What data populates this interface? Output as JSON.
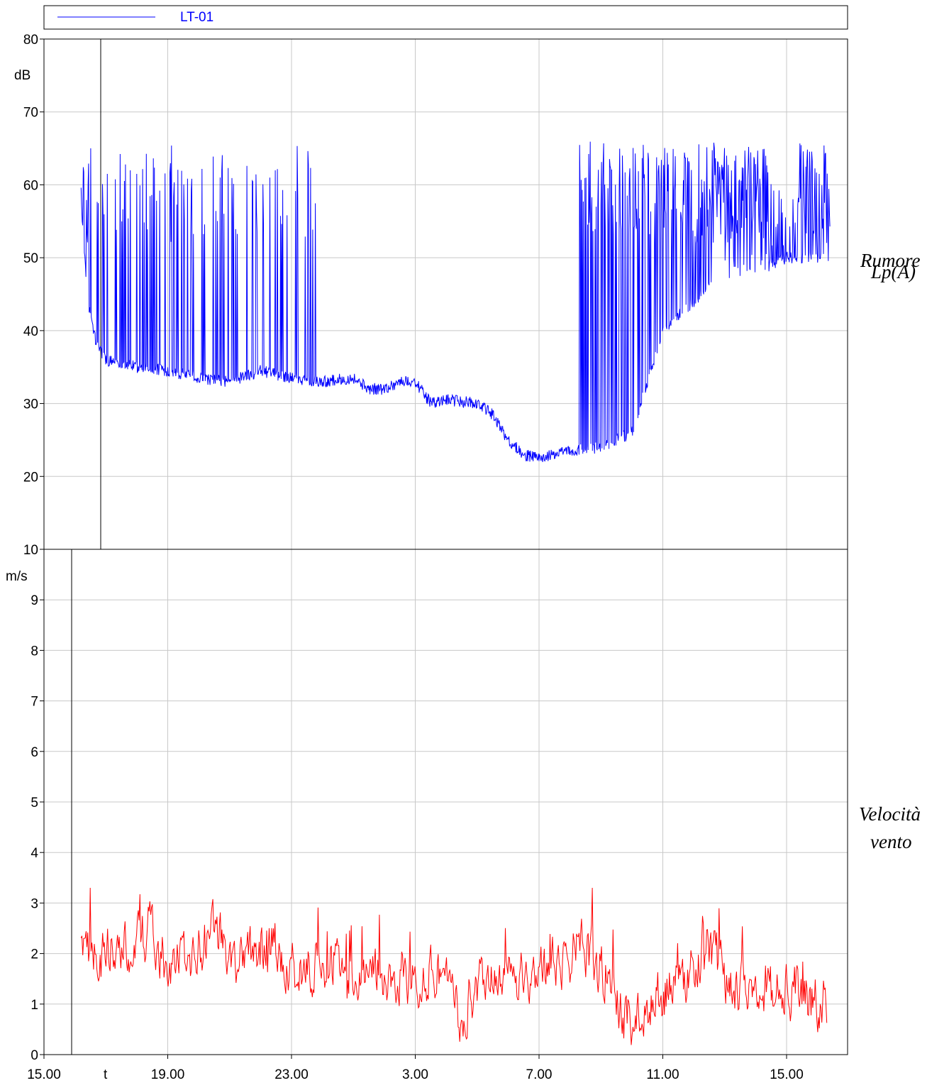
{
  "legend": {
    "label": "LT-01",
    "color": "#0000ff"
  },
  "chart_data": [
    {
      "type": "line",
      "ylabel": "dB",
      "side_label": [
        "Rumore",
        "Lp(A)"
      ],
      "ylim": [
        10,
        80
      ],
      "yticks": [
        10,
        20,
        30,
        40,
        50,
        60,
        70,
        80
      ],
      "x_hours_range": [
        -1.0,
        25.4
      ],
      "x_start_hours": 1.2,
      "x_end_hours": 25.4,
      "grid": true,
      "series": [
        {
          "name": "LT-01",
          "color": "#0000ff",
          "trend": [
            [
              1.2,
              58
            ],
            [
              1.4,
              44
            ],
            [
              1.7,
              38
            ],
            [
              2.0,
              36
            ],
            [
              2.5,
              35.5
            ],
            [
              3.0,
              35
            ],
            [
              4.0,
              34.5
            ],
            [
              5.0,
              33.5
            ],
            [
              6.0,
              33
            ],
            [
              7.0,
              34.5
            ],
            [
              8.0,
              33.5
            ],
            [
              9.0,
              33
            ],
            [
              10.0,
              33.5
            ],
            [
              10.5,
              32
            ],
            [
              11.0,
              32
            ],
            [
              11.5,
              33
            ],
            [
              12.0,
              33
            ],
            [
              12.5,
              30
            ],
            [
              13.0,
              30.5
            ],
            [
              14.0,
              30
            ],
            [
              14.5,
              28.5
            ],
            [
              15.0,
              25
            ],
            [
              15.5,
              23
            ],
            [
              16.0,
              22.5
            ],
            [
              17.0,
              23.5
            ],
            [
              18.0,
              24
            ],
            [
              19.0,
              26
            ],
            [
              19.5,
              33
            ],
            [
              20.0,
              40
            ],
            [
              21.0,
              44
            ],
            [
              22.0,
              48
            ],
            [
              23.0,
              48
            ],
            [
              24.0,
              50
            ],
            [
              25.4,
              50
            ]
          ],
          "peaks": [
            [
              1.25,
              68.5
            ],
            [
              1.45,
              62
            ],
            [
              1.6,
              60
            ],
            [
              1.8,
              65.5
            ],
            [
              2.0,
              64.5
            ],
            [
              2.3,
              64.5
            ],
            [
              2.6,
              62
            ],
            [
              3.0,
              62
            ],
            [
              3.3,
              63
            ],
            [
              3.8,
              62
            ],
            [
              4.3,
              63
            ],
            [
              5.0,
              59
            ],
            [
              5.5,
              55
            ],
            [
              6.2,
              62
            ],
            [
              6.5,
              63.5
            ],
            [
              7.1,
              61
            ],
            [
              7.5,
              56
            ],
            [
              7.7,
              64
            ],
            [
              8.2,
              60
            ],
            [
              8.5,
              58
            ],
            [
              10.0,
              54
            ],
            [
              10.2,
              53
            ],
            [
              13.0,
              33
            ],
            [
              15.1,
              56
            ],
            [
              15.3,
              58
            ],
            [
              15.6,
              62
            ],
            [
              16.0,
              28
            ],
            [
              17.5,
              60
            ],
            [
              17.8,
              62
            ],
            [
              18.7,
              65.5
            ],
            [
              19.5,
              60
            ],
            [
              20.1,
              65.5
            ],
            [
              20.5,
              65
            ],
            [
              21.0,
              66
            ],
            [
              21.4,
              66.5
            ],
            [
              21.8,
              66
            ],
            [
              22.3,
              68
            ],
            [
              22.6,
              67
            ],
            [
              23.0,
              68
            ],
            [
              23.4,
              65
            ],
            [
              23.8,
              64.5
            ],
            [
              24.2,
              65
            ],
            [
              24.6,
              66
            ],
            [
              25.0,
              66
            ],
            [
              25.3,
              65
            ],
            [
              26.0,
              62
            ],
            [
              27.0,
              60
            ],
            [
              28.0,
              55
            ],
            [
              29.0,
              55
            ],
            [
              30.0,
              55
            ],
            [
              31.0,
              52
            ],
            [
              32.0,
              58
            ],
            [
              33.0,
              65
            ],
            [
              34.0,
              67
            ],
            [
              35.0,
              66
            ],
            [
              36.0,
              65
            ],
            [
              37.0,
              65
            ]
          ]
        }
      ]
    },
    {
      "type": "line",
      "ylabel": "m/s",
      "side_label": [
        "Velocità",
        "vento"
      ],
      "ylim": [
        0,
        10
      ],
      "yticks": [
        0,
        1,
        2,
        3,
        4,
        5,
        6,
        7,
        8,
        9,
        10
      ],
      "xlabel": "t",
      "x_tick_labels": [
        "15.00",
        "19.00",
        "23.00",
        "3.00",
        "7.00",
        "11.00",
        "15.00"
      ],
      "x_tick_hours": [
        0,
        4,
        8,
        12,
        16,
        20,
        24
      ],
      "x_start_hours": 1.2,
      "x_end_hours": 25.3,
      "grid": true,
      "series": [
        {
          "name": "",
          "color": "#ff0000",
          "trend": [
            [
              1.2,
              2.2
            ],
            [
              1.5,
              2.0
            ],
            [
              2.0,
              2.0
            ],
            [
              2.5,
              2.1
            ],
            [
              3.0,
              2.3
            ],
            [
              3.5,
              2.5
            ],
            [
              4.0,
              1.6
            ],
            [
              4.5,
              1.8
            ],
            [
              5.0,
              2.2
            ],
            [
              5.5,
              2.6
            ],
            [
              6.0,
              1.8
            ],
            [
              6.5,
              2.0
            ],
            [
              7.0,
              2.2
            ],
            [
              7.5,
              2.1
            ],
            [
              8.0,
              1.8
            ],
            [
              8.5,
              1.6
            ],
            [
              9.0,
              1.8
            ],
            [
              9.5,
              1.8
            ],
            [
              10.0,
              1.7
            ],
            [
              10.5,
              1.6
            ],
            [
              11.0,
              1.4
            ],
            [
              11.5,
              1.5
            ],
            [
              12.0,
              1.6
            ],
            [
              12.5,
              1.7
            ],
            [
              13.0,
              1.6
            ],
            [
              13.5,
              0.6
            ],
            [
              13.8,
              1.2
            ],
            [
              14.5,
              1.4
            ],
            [
              15.0,
              1.5
            ],
            [
              15.5,
              1.5
            ],
            [
              16.0,
              1.6
            ],
            [
              16.5,
              1.8
            ],
            [
              17.0,
              2.0
            ],
            [
              17.5,
              2.1
            ],
            [
              18.0,
              1.7
            ],
            [
              18.5,
              1.0
            ],
            [
              19.0,
              0.6
            ],
            [
              19.5,
              0.9
            ],
            [
              20.0,
              1.2
            ],
            [
              20.5,
              1.4
            ],
            [
              21.0,
              1.8
            ],
            [
              21.5,
              2.1
            ],
            [
              22.0,
              1.5
            ],
            [
              22.5,
              1.4
            ],
            [
              23.0,
              1.6
            ],
            [
              23.5,
              1.3
            ],
            [
              24.0,
              1.3
            ],
            [
              24.5,
              1.2
            ],
            [
              25.0,
              1.0
            ],
            [
              25.3,
              1.0
            ]
          ],
          "peaks": [
            [
              2.0,
              3.0
            ],
            [
              3.8,
              3.1
            ],
            [
              5.3,
              3.3
            ],
            [
              7.2,
              2.8
            ],
            [
              8.6,
              2.7
            ],
            [
              9.5,
              2.5
            ],
            [
              10.6,
              2.4
            ],
            [
              11.5,
              2.1
            ],
            [
              12.5,
              2.2
            ],
            [
              16.0,
              2.6
            ],
            [
              18.0,
              2.5
            ],
            [
              20.2,
              3.1
            ],
            [
              22.0,
              2.9
            ],
            [
              24.5,
              1.9
            ],
            [
              26.0,
              1.6
            ],
            [
              27.3,
              1.5
            ]
          ]
        }
      ]
    }
  ]
}
